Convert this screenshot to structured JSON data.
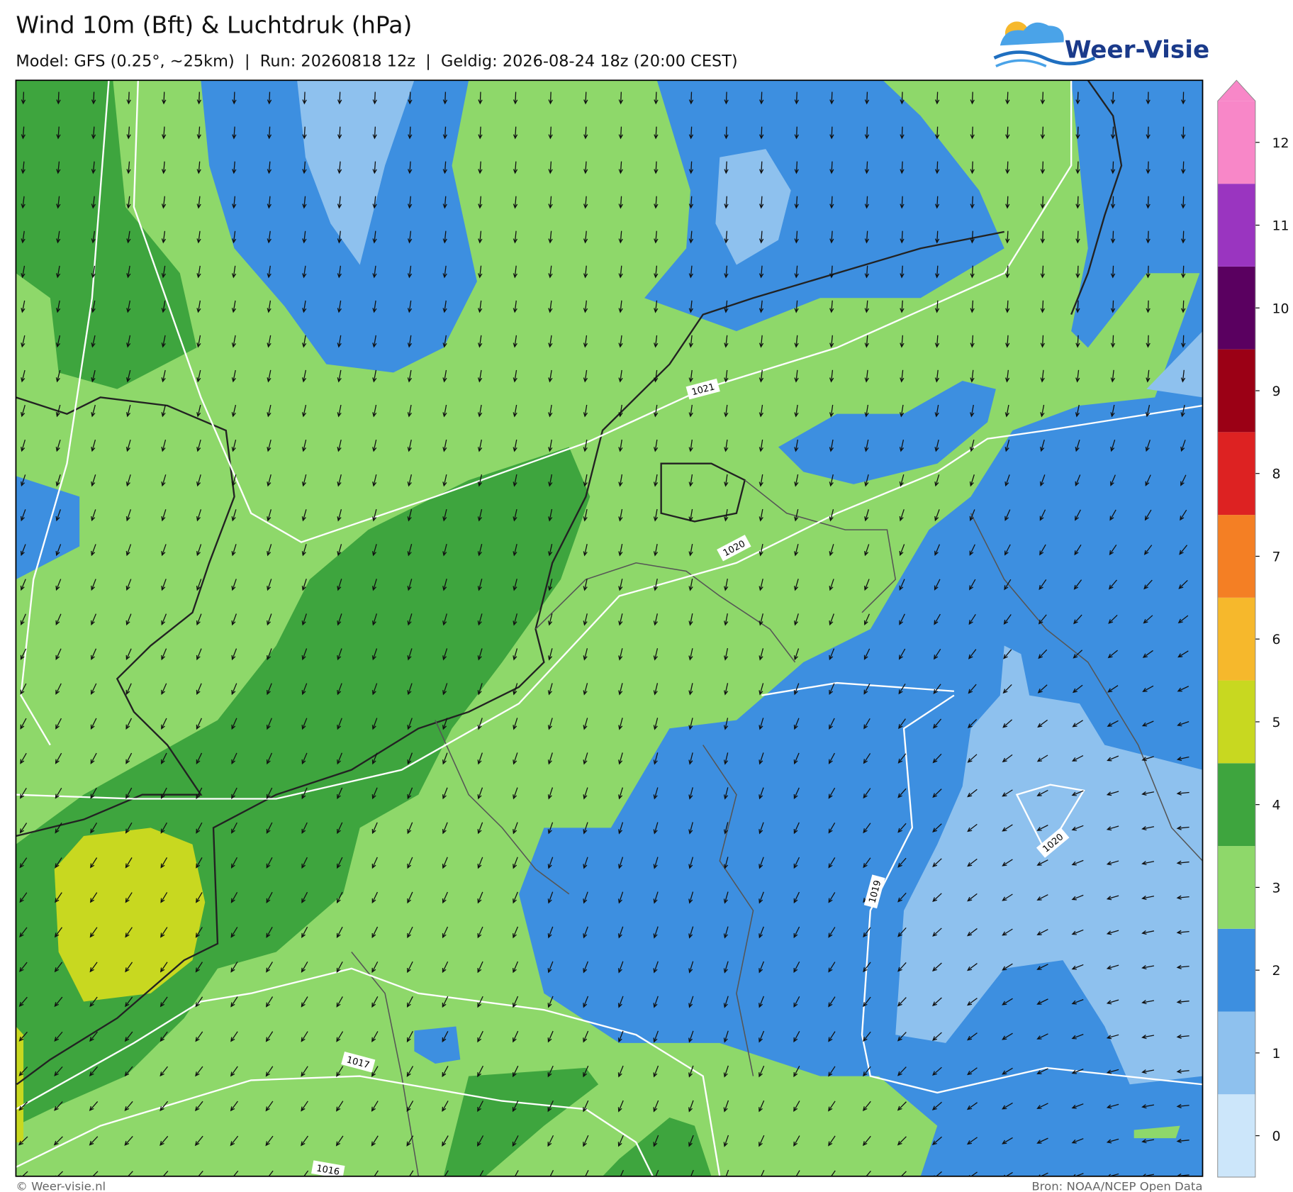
{
  "header": {
    "title": "Wind 10m (Bft) & Luchtdruk (hPa)",
    "subtitle": "Model: GFS (0.25°, ~25km)  |  Run: 20260818 12z  |  Geldig: 2026-08-24 18z (20:00 CEST)"
  },
  "logo": {
    "text": "Weer-Visie"
  },
  "legend": {
    "levels": [
      {
        "value": 0,
        "color": "#cce6fa"
      },
      {
        "value": 1,
        "color": "#8ec1ee"
      },
      {
        "value": 2,
        "color": "#3d8fe0"
      },
      {
        "value": 3,
        "color": "#8ed86a"
      },
      {
        "value": 4,
        "color": "#3ea53e"
      },
      {
        "value": 5,
        "color": "#c8d820"
      },
      {
        "value": 6,
        "color": "#f6b82c"
      },
      {
        "value": 7,
        "color": "#f47f24"
      },
      {
        "value": 8,
        "color": "#dd2222"
      },
      {
        "value": 9,
        "color": "#9b0015"
      },
      {
        "value": 10,
        "color": "#5a0060"
      },
      {
        "value": 11,
        "color": "#9a35c0"
      },
      {
        "value": 12,
        "color": "#f887c8"
      }
    ]
  },
  "isobar_labels": [
    "1021",
    "1020",
    "1019",
    "1020",
    "1017",
    "1016"
  ],
  "footer": {
    "credit": "© Weer-visie.nl",
    "source": "Bron: NOAA/NCEP Open Data"
  }
}
